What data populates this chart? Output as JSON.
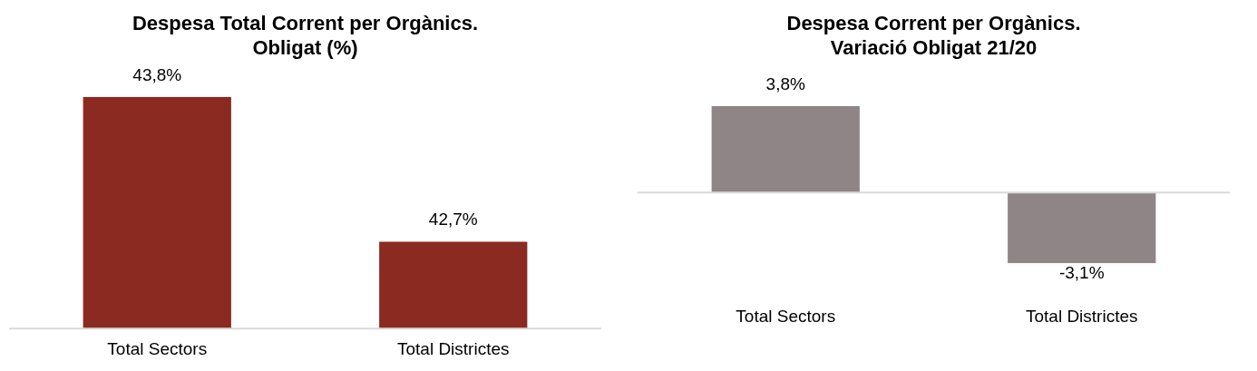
{
  "chart_data": [
    {
      "type": "bar",
      "title": "Despesa Total Corrent per Orgànics.\nObligat (%)",
      "categories": [
        "Total Sectors",
        "Total Districtes"
      ],
      "values": [
        43.8,
        42.7
      ],
      "color": "#8b2a20",
      "ylim": [
        42.04,
        43.8
      ],
      "data_labels": true,
      "value_labels": [
        "43,8%",
        "42,7%"
      ],
      "grid": false,
      "legend": false
    },
    {
      "type": "bar",
      "title": "Despesa Corrent per Orgànics.\nVariació Obligat 21/20",
      "categories": [
        "Total Sectors",
        "Total Districtes"
      ],
      "values": [
        3.8,
        -3.1
      ],
      "color": "#8f8587",
      "ylim": [
        -3.1,
        3.8
      ],
      "data_labels": true,
      "value_labels": [
        "3,8%",
        "-3,1%"
      ],
      "grid": false,
      "legend": false
    }
  ]
}
